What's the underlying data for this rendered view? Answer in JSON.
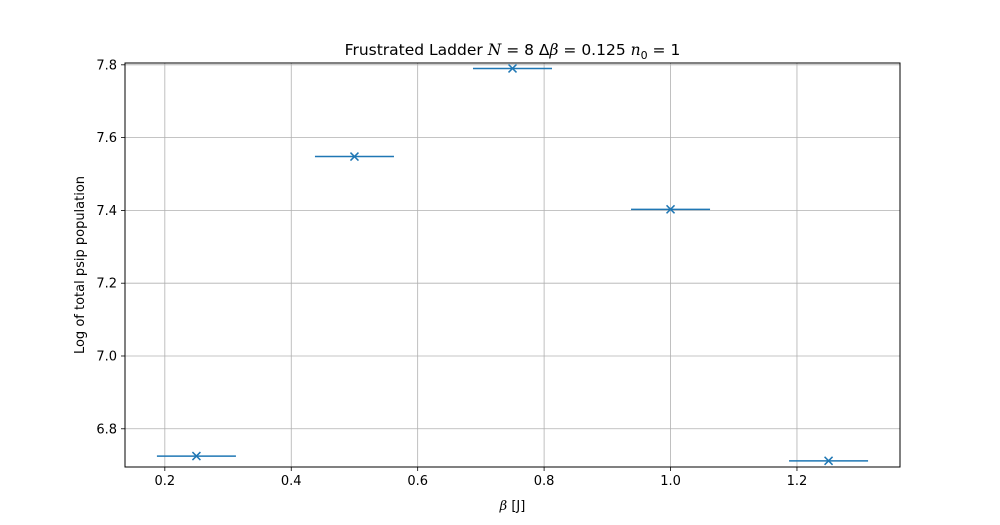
{
  "chart_data": {
    "type": "scatter",
    "title": {
      "prefix": "Frustrated Ladder ",
      "N_symbol": "N",
      "N_eq": " = 8 ",
      "delta_symbol": "Δ",
      "beta_symbol": "β",
      "dbeta_eq": " = 0.125 ",
      "n_symbol": "n",
      "n_sub": "0",
      "n_eq": " = 1"
    },
    "xlabel": {
      "symbol": "β",
      "unit": " [J]"
    },
    "ylabel": "Log of total psip population",
    "xlim": [
      0.137,
      1.363
    ],
    "ylim": [
      6.695,
      7.805
    ],
    "x_ticks": [
      0.2,
      0.4,
      0.6,
      0.8,
      1.0,
      1.2
    ],
    "x_tick_labels": [
      "0.2",
      "0.4",
      "0.6",
      "0.8",
      "1.0",
      "1.2"
    ],
    "y_ticks": [
      6.8,
      7.0,
      7.2,
      7.4,
      7.6,
      7.8
    ],
    "y_tick_labels": [
      "6.8",
      "7.0",
      "7.2",
      "7.4",
      "7.6",
      "7.8"
    ],
    "grid": true,
    "series": [
      {
        "marker": "x",
        "color": "#1f77b4",
        "x": [
          0.25,
          0.5,
          0.75,
          1.0,
          1.25
        ],
        "y": [
          6.725,
          7.548,
          7.79,
          7.403,
          6.712
        ],
        "xerr": [
          0.0625,
          0.0625,
          0.0625,
          0.0625,
          0.0625
        ]
      }
    ]
  }
}
